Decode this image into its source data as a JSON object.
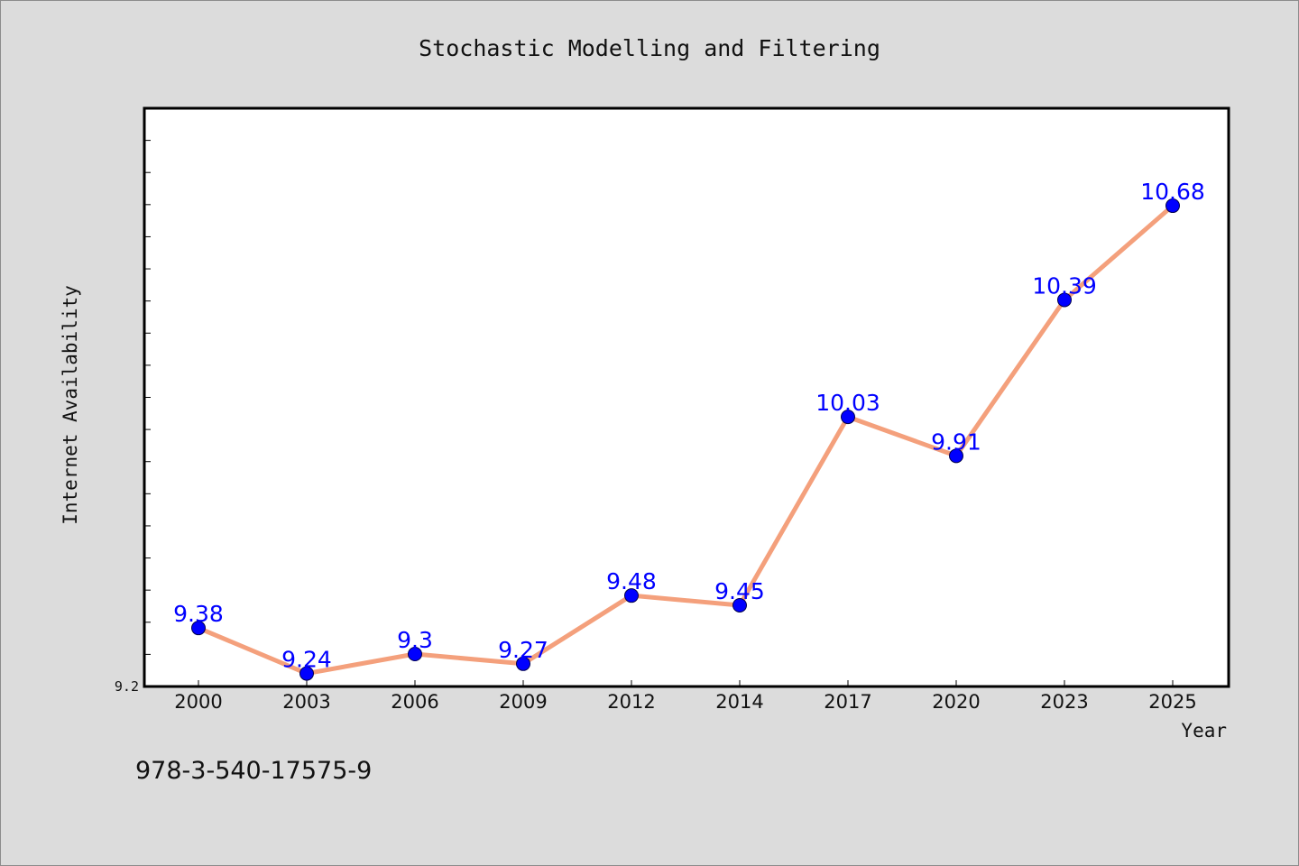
{
  "chart_data": {
    "type": "line",
    "title": "Stochastic Modelling and Filtering",
    "xlabel": "Year",
    "ylabel": "Internet Availability",
    "categories": [
      "2000",
      "2003",
      "2006",
      "2009",
      "2012",
      "2014",
      "2017",
      "2020",
      "2023",
      "2025"
    ],
    "series": [
      {
        "values": [
          9.38,
          9.24,
          9.3,
          9.27,
          9.48,
          9.45,
          10.03,
          9.91,
          10.39,
          10.68
        ]
      }
    ],
    "yticks": [
      "9.2"
    ],
    "ylim": [
      9.2,
      10.98
    ],
    "grid": false,
    "line_color": "#f4a07c",
    "marker_color": "#0000ff",
    "label_color": "#0000ff"
  },
  "footer": {
    "isbn": "978-3-540-17575-9"
  }
}
